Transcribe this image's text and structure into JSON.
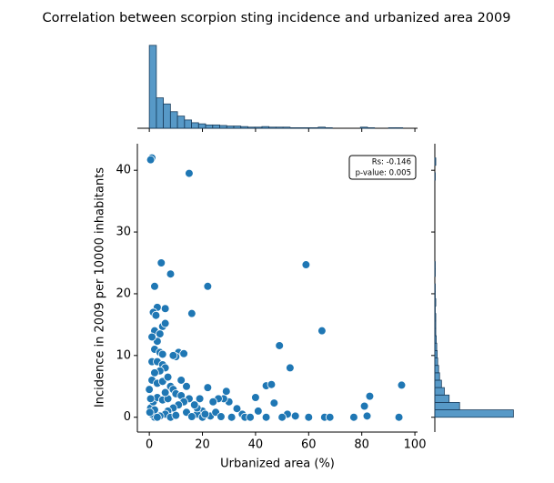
{
  "chart_data": [
    {
      "type": "scatter",
      "title": "Correlation between scorpion sting incidence and urbanized area 2009",
      "xlabel": "Urbanized area (%)",
      "ylabel": "Incidence in 2009 per 10000 inhabitants",
      "annotation": [
        "Rs: -0.146",
        "p-value: 0.005"
      ],
      "color": "#1f77b4",
      "x": [
        1,
        0.5,
        15,
        4.5,
        8,
        2,
        22,
        59,
        16,
        65,
        49,
        53,
        95,
        83,
        81,
        82,
        77,
        94,
        60,
        66,
        68,
        52,
        47,
        44,
        46,
        40,
        41,
        35,
        33,
        30,
        28,
        29,
        26,
        24,
        22,
        20,
        18,
        15,
        14,
        12,
        11,
        13,
        10,
        9,
        6,
        5,
        6,
        3,
        1.5,
        2,
        4,
        3,
        2,
        4,
        5,
        1,
        3,
        5,
        6,
        4,
        2,
        1,
        3,
        5,
        7,
        8,
        9,
        10,
        12,
        13,
        11,
        9,
        7,
        6,
        4,
        2,
        1,
        0.5,
        1.5,
        3,
        5,
        0,
        0.5,
        2,
        3,
        8,
        10,
        14,
        16,
        18,
        20,
        23,
        25,
        27,
        31,
        36,
        38,
        44,
        50,
        55,
        1,
        2.5,
        7,
        6,
        17,
        19,
        21,
        0.2
      ],
      "y": [
        42,
        41.7,
        39.5,
        25,
        23.2,
        21.2,
        21.2,
        24.7,
        16.8,
        14,
        11.6,
        8,
        5.2,
        3.4,
        1.8,
        0.2,
        0,
        0,
        0,
        0,
        0,
        0.5,
        2.3,
        5.1,
        5.3,
        3.2,
        1,
        0.5,
        1.4,
        2.5,
        3,
        4.2,
        3,
        2.5,
        4.8,
        1,
        0.5,
        3,
        5,
        6,
        10.5,
        10.3,
        9.8,
        10,
        17.6,
        14.7,
        15.2,
        17.8,
        17,
        14,
        13.5,
        12.3,
        11,
        10.5,
        10.2,
        9,
        9,
        8.5,
        8,
        7.5,
        7.2,
        6,
        5.5,
        5.8,
        6.5,
        5,
        4.5,
        3.8,
        3.5,
        2.5,
        2,
        1.5,
        1,
        0.5,
        0.2,
        0,
        0.5,
        1.5,
        2.5,
        3.2,
        2.8,
        4.5,
        3,
        1.2,
        0,
        0,
        0.3,
        0.8,
        0.1,
        1.5,
        0,
        0.2,
        0.8,
        0.1,
        0,
        0,
        0,
        0,
        0,
        0.2,
        13,
        16.5,
        3,
        4,
        2,
        3,
        0.5,
        0.8
      ],
      "xlim": [
        -4.5,
        101
      ],
      "ylim": [
        -2.4,
        44.3
      ],
      "xticks": [
        0,
        20,
        40,
        60,
        80,
        100
      ],
      "yticks": [
        0,
        10,
        20,
        30,
        40
      ]
    },
    {
      "type": "histogram",
      "orientation": "vertical",
      "color": "#1f77b4",
      "bins": [
        0,
        2.65,
        5.3,
        7.95,
        10.6,
        13.25,
        15.9,
        18.55,
        21.2,
        23.85,
        26.5,
        29.15,
        31.8,
        34.45,
        37.1,
        39.75,
        42.4,
        45.05,
        47.7,
        50.35,
        53,
        55.65,
        58.3,
        60.95,
        63.6,
        66.25,
        68.9,
        71.55,
        74.2,
        76.85,
        79.5,
        82.15,
        84.8,
        87.45,
        90.1,
        92.75,
        95.4
      ],
      "values": [
        150,
        55,
        44,
        30,
        22,
        15,
        10,
        8,
        6,
        6,
        5,
        4,
        4,
        3,
        2,
        2,
        3,
        2,
        2,
        2,
        1,
        1,
        1,
        1,
        2,
        1,
        0,
        0,
        0,
        0,
        2,
        1,
        0,
        0,
        1,
        1
      ],
      "ylim": [
        0,
        158
      ]
    },
    {
      "type": "histogram",
      "orientation": "horizontal",
      "color": "#1f77b4",
      "bins": [
        0,
        1.2,
        2.4,
        3.6,
        4.8,
        6,
        7.2,
        8.4,
        9.6,
        10.8,
        12,
        13.2,
        14.4,
        15.6,
        16.8,
        18,
        19.2,
        20.4,
        21.6,
        22.8,
        24,
        25.2,
        26.4,
        27.6,
        28.8,
        30,
        31.2,
        32.4,
        33.6,
        34.8,
        36,
        37.2,
        38.4,
        39.6,
        40.8,
        42
      ],
      "values": [
        165,
        52,
        30,
        20,
        14,
        10,
        8,
        6,
        5,
        4,
        3,
        2,
        2,
        2,
        1,
        2,
        1,
        1,
        0,
        1,
        1,
        0,
        0,
        0,
        0,
        0,
        0,
        0,
        0,
        0,
        0,
        0,
        1,
        0,
        2
      ],
      "xlim": [
        0,
        170
      ]
    }
  ]
}
